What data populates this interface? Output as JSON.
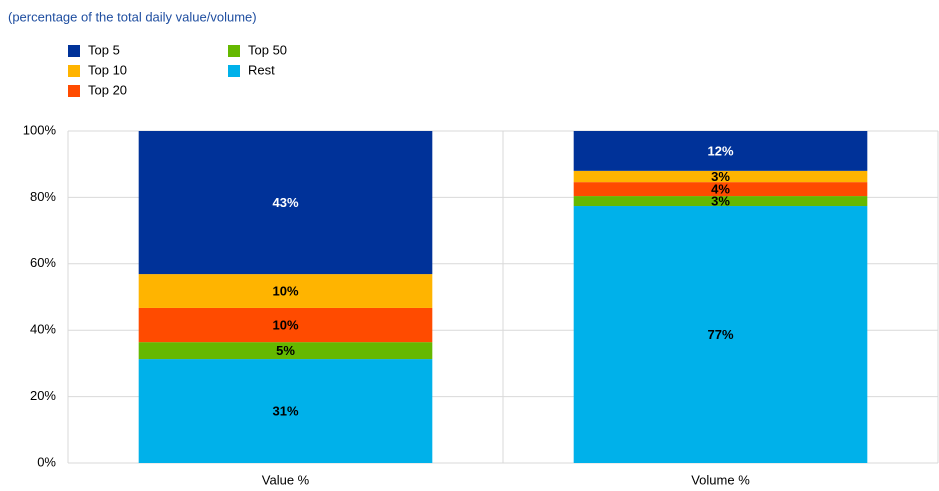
{
  "chart_data": {
    "type": "stacked-bar",
    "subtitle": "(percentage of the total daily value/volume)",
    "categories": [
      "Value %",
      "Volume %"
    ],
    "series": [
      {
        "name": "Top 5",
        "color": "#003299",
        "values": [
          43.1,
          12.0
        ],
        "value_labels": [
          "43%",
          "12%"
        ]
      },
      {
        "name": "Top 10",
        "color": "#ffb400",
        "values": [
          10.2,
          3.4
        ],
        "value_labels": [
          "10%",
          "3%"
        ]
      },
      {
        "name": "Top 20",
        "color": "#ff4b00",
        "values": [
          10.3,
          4.2
        ],
        "value_labels": [
          "10%",
          "4%"
        ]
      },
      {
        "name": "Top 50",
        "color": "#65b800",
        "values": [
          5.1,
          3.0
        ],
        "value_labels": [
          "5%",
          "3%"
        ]
      },
      {
        "name": "Rest",
        "color": "#00b1ea",
        "values": [
          31.3,
          77.4
        ],
        "value_labels": [
          "31%",
          "77%"
        ]
      }
    ],
    "ylim": [
      0,
      100
    ],
    "yticks": [
      {
        "value": 0,
        "label": "0%"
      },
      {
        "value": 20,
        "label": "20%"
      },
      {
        "value": 40,
        "label": "40%"
      },
      {
        "value": 60,
        "label": "60%"
      },
      {
        "value": 80,
        "label": "80%"
      },
      {
        "value": 100,
        "label": "100%"
      }
    ],
    "grid": true
  }
}
